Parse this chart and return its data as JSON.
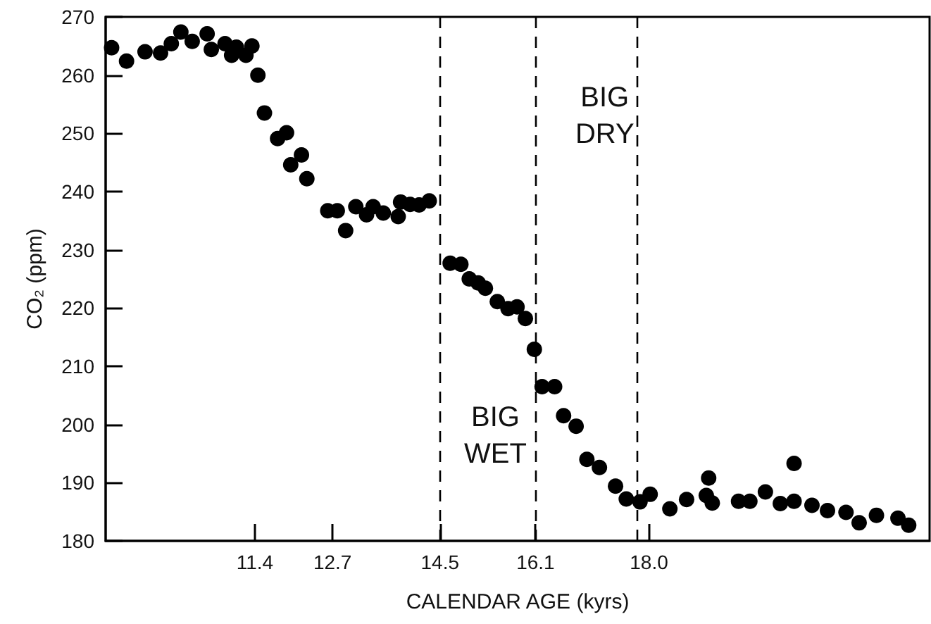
{
  "chart_data": {
    "type": "scatter",
    "xlabel": "CALENDAR AGE (kyrs)",
    "ylabel": "CO₂ (ppm)",
    "x": [
      9.0,
      9.25,
      9.56,
      9.82,
      10.0,
      10.16,
      10.35,
      10.6,
      10.67,
      10.9,
      11.01,
      11.09,
      11.25,
      11.35,
      11.45,
      11.56,
      11.78,
      11.93,
      12.0,
      12.18,
      12.27,
      12.62,
      12.78,
      12.92,
      13.09,
      13.27,
      13.38,
      13.55,
      13.8,
      13.84,
      14.0,
      14.15,
      14.32,
      14.67,
      14.85,
      14.99,
      15.14,
      15.26,
      15.46,
      15.64,
      15.79,
      15.93,
      16.08,
      16.21,
      16.42,
      16.57,
      16.78,
      16.96,
      17.17,
      17.44,
      17.62,
      17.85,
      18.02,
      18.35,
      18.63,
      18.96,
      19.0,
      19.06,
      19.5,
      19.69,
      19.95,
      20.2,
      20.43,
      20.43,
      20.73,
      20.99,
      21.3,
      21.52,
      21.81,
      22.17,
      22.35
    ],
    "values": [
      264.7,
      262.4,
      264.0,
      263.8,
      265.4,
      267.4,
      265.8,
      267.1,
      264.4,
      265.4,
      263.4,
      264.8,
      263.4,
      265.0,
      260.0,
      253.5,
      249.1,
      250.1,
      244.6,
      246.3,
      242.2,
      236.7,
      236.7,
      233.3,
      237.4,
      236.0,
      237.4,
      236.3,
      235.7,
      238.2,
      237.8,
      237.7,
      238.4,
      227.7,
      227.5,
      225.0,
      224.3,
      223.4,
      221.1,
      219.9,
      220.2,
      218.2,
      212.9,
      206.5,
      206.5,
      201.5,
      199.7,
      194.0,
      192.6,
      189.4,
      187.2,
      186.7,
      188.0,
      185.5,
      187.1,
      187.8,
      190.8,
      186.5,
      186.8,
      186.8,
      188.4,
      186.4,
      193.3,
      186.8,
      186.1,
      185.2,
      184.9,
      183.1,
      184.4,
      183.9,
      182.7
    ],
    "color": "#000000",
    "marker": "circle",
    "xlim": [
      8.9,
      22.7
    ],
    "xticks": [
      11.4,
      12.7,
      14.5,
      16.1,
      {
        "value": 18,
        "label": "18.0"
      }
    ],
    "ylim": [
      180,
      270
    ],
    "yticks": [
      180,
      190,
      200,
      210,
      220,
      230,
      240,
      250,
      260,
      270
    ],
    "ref_lines": [
      {
        "axis": "x",
        "value": 14.5,
        "color": "#000000",
        "line_style": "dashed"
      },
      {
        "axis": "x",
        "value": 16.1,
        "color": "#000000",
        "line_style": "dashed"
      },
      {
        "axis": "x",
        "value": 17.8,
        "color": "#000000",
        "line_style": "dashed"
      }
    ],
    "annotations": [
      "BIG\nDRY",
      "BIG\nWET"
    ],
    "grid": false
  }
}
